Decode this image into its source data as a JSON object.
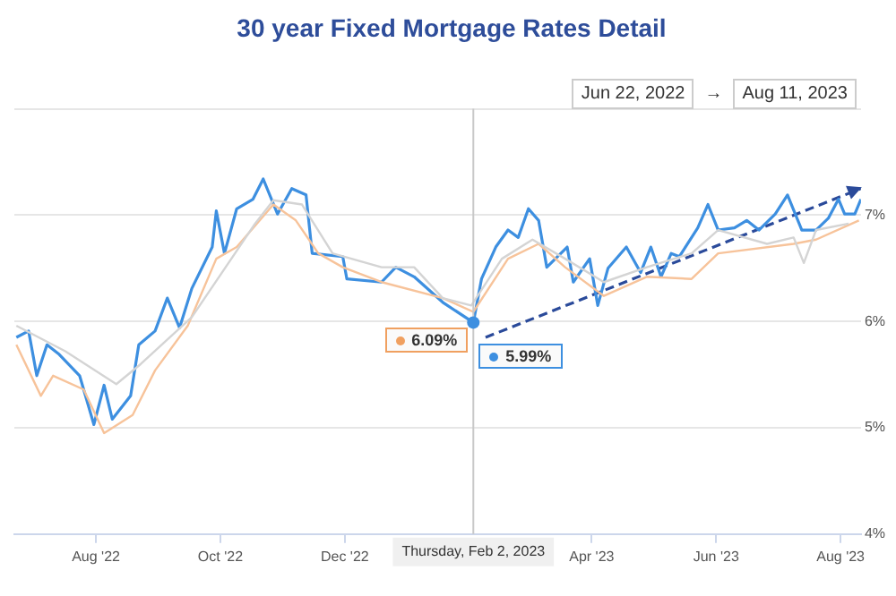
{
  "chart_data": {
    "type": "line",
    "title": "30 year Fixed Mortgage Rates Detail",
    "xlim": [
      "2022-06-22",
      "2023-08-11"
    ],
    "xticks": [
      {
        "value": "2022-08-01",
        "label": "Aug '22"
      },
      {
        "value": "2022-10-01",
        "label": "Oct '22"
      },
      {
        "value": "2022-12-01",
        "label": "Dec '22"
      },
      {
        "value": "2023-04-01",
        "label": "Apr '23"
      },
      {
        "value": "2023-06-01",
        "label": "Jun '23"
      },
      {
        "value": "2023-08-01",
        "label": "Aug '23"
      }
    ],
    "ylim": [
      4,
      8
    ],
    "yticks": [
      {
        "value": 4,
        "label": "4%"
      },
      {
        "value": 5,
        "label": "5%"
      },
      {
        "value": 6,
        "label": "6%"
      },
      {
        "value": 7,
        "label": "7%"
      },
      {
        "value": 8,
        "label": null
      }
    ],
    "grid": "y",
    "legend": false,
    "marker": "none",
    "line_style": "solid",
    "series": [
      {
        "color": "#d4d4d4",
        "x": [
          "2022-06-23",
          "2022-07-17",
          "2022-08-11",
          "2022-08-23",
          "2022-09-17",
          "2022-10-18",
          "2022-10-27",
          "2022-11-10",
          "2022-11-25",
          "2022-12-19",
          "2023-01-04",
          "2023-01-18",
          "2023-02-01",
          "2023-02-16",
          "2023-03-03",
          "2023-03-19",
          "2023-04-07",
          "2023-04-28",
          "2023-05-20",
          "2023-06-02",
          "2023-06-26",
          "2023-07-09",
          "2023-07-14",
          "2023-07-20",
          "2023-08-05"
        ],
        "values": [
          5.96,
          5.72,
          5.41,
          5.6,
          6.04,
          6.92,
          7.14,
          7.1,
          6.64,
          6.51,
          6.51,
          6.22,
          6.15,
          6.59,
          6.77,
          6.59,
          6.37,
          6.51,
          6.64,
          6.86,
          6.73,
          6.79,
          6.55,
          6.86,
          6.92
        ]
      },
      {
        "color": "#f7c39a",
        "x": [
          "2022-06-23",
          "2022-07-05",
          "2022-07-11",
          "2022-07-26",
          "2022-08-05",
          "2022-08-19",
          "2022-08-30",
          "2022-09-15",
          "2022-09-29",
          "2022-10-09",
          "2022-10-27",
          "2022-11-07",
          "2022-11-18",
          "2022-11-30",
          "2022-12-19",
          "2023-01-18",
          "2023-02-02",
          "2023-02-19",
          "2023-03-06",
          "2023-03-19",
          "2023-04-07",
          "2023-04-28",
          "2023-05-20",
          "2023-06-02",
          "2023-07-09",
          "2023-07-20",
          "2023-08-10"
        ],
        "values": [
          5.78,
          5.3,
          5.49,
          5.36,
          4.95,
          5.12,
          5.54,
          5.96,
          6.59,
          6.7,
          7.1,
          6.95,
          6.64,
          6.51,
          6.37,
          6.22,
          6.09,
          6.59,
          6.73,
          6.51,
          6.24,
          6.42,
          6.4,
          6.64,
          6.73,
          6.77,
          6.95
        ]
      },
      {
        "color": "#3d8fe0",
        "x": [
          "2022-06-23",
          "2022-06-29",
          "2022-07-03",
          "2022-07-08",
          "2022-07-14",
          "2022-07-24",
          "2022-07-31",
          "2022-08-05",
          "2022-08-09",
          "2022-08-18",
          "2022-08-22",
          "2022-08-30",
          "2022-09-05",
          "2022-09-11",
          "2022-09-17",
          "2022-09-27",
          "2022-09-29",
          "2022-10-03",
          "2022-10-09",
          "2022-10-17",
          "2022-10-22",
          "2022-10-29",
          "2022-11-05",
          "2022-11-12",
          "2022-11-15",
          "2022-11-30",
          "2022-12-02",
          "2022-12-19",
          "2022-12-26",
          "2023-01-04",
          "2023-01-18",
          "2023-02-02",
          "2023-02-06",
          "2023-02-13",
          "2023-02-19",
          "2023-02-24",
          "2023-03-01",
          "2023-03-06",
          "2023-03-10",
          "2023-03-20",
          "2023-03-23",
          "2023-03-31",
          "2023-04-04",
          "2023-04-09",
          "2023-04-18",
          "2023-04-25",
          "2023-04-30",
          "2023-05-05",
          "2023-05-10",
          "2023-05-14",
          "2023-05-23",
          "2023-05-28",
          "2023-06-02",
          "2023-06-10",
          "2023-06-16",
          "2023-06-22",
          "2023-06-30",
          "2023-07-06",
          "2023-07-13",
          "2023-07-20",
          "2023-07-26",
          "2023-07-31",
          "2023-08-03",
          "2023-08-08",
          "2023-08-11"
        ],
        "values": [
          5.85,
          5.91,
          5.49,
          5.78,
          5.69,
          5.49,
          5.03,
          5.4,
          5.08,
          5.3,
          5.78,
          5.91,
          6.22,
          5.94,
          6.31,
          6.7,
          7.04,
          6.64,
          7.06,
          7.15,
          7.34,
          7.01,
          7.25,
          7.19,
          6.64,
          6.61,
          6.4,
          6.37,
          6.51,
          6.42,
          6.18,
          5.99,
          6.4,
          6.7,
          6.86,
          6.79,
          7.06,
          6.95,
          6.51,
          6.7,
          6.37,
          6.59,
          6.15,
          6.5,
          6.7,
          6.46,
          6.7,
          6.42,
          6.64,
          6.61,
          6.88,
          7.1,
          6.86,
          6.88,
          6.95,
          6.86,
          7.01,
          7.19,
          6.86,
          6.86,
          6.97,
          7.15,
          7.01,
          7.01,
          7.15
        ]
      },
      {
        "type": "line",
        "line_style": "dashed",
        "color": "#2a4a9a",
        "x": [
          "2023-02-08",
          "2023-08-11"
        ],
        "values": [
          5.85,
          7.25
        ]
      }
    ],
    "ref_lines": [
      {
        "axis": "x",
        "value": "2023-02-02",
        "label": "Thursday, Feb 2, 2023",
        "color": "#c8c8c8"
      }
    ],
    "annotations": [
      {
        "text": "6.09%",
        "x": "2023-02-02",
        "y": 6.09
      },
      {
        "text": "5.99%",
        "x": "2023-02-02",
        "y": 5.99
      },
      "Jun 22, 2022 → Aug 11, 2023"
    ]
  }
}
